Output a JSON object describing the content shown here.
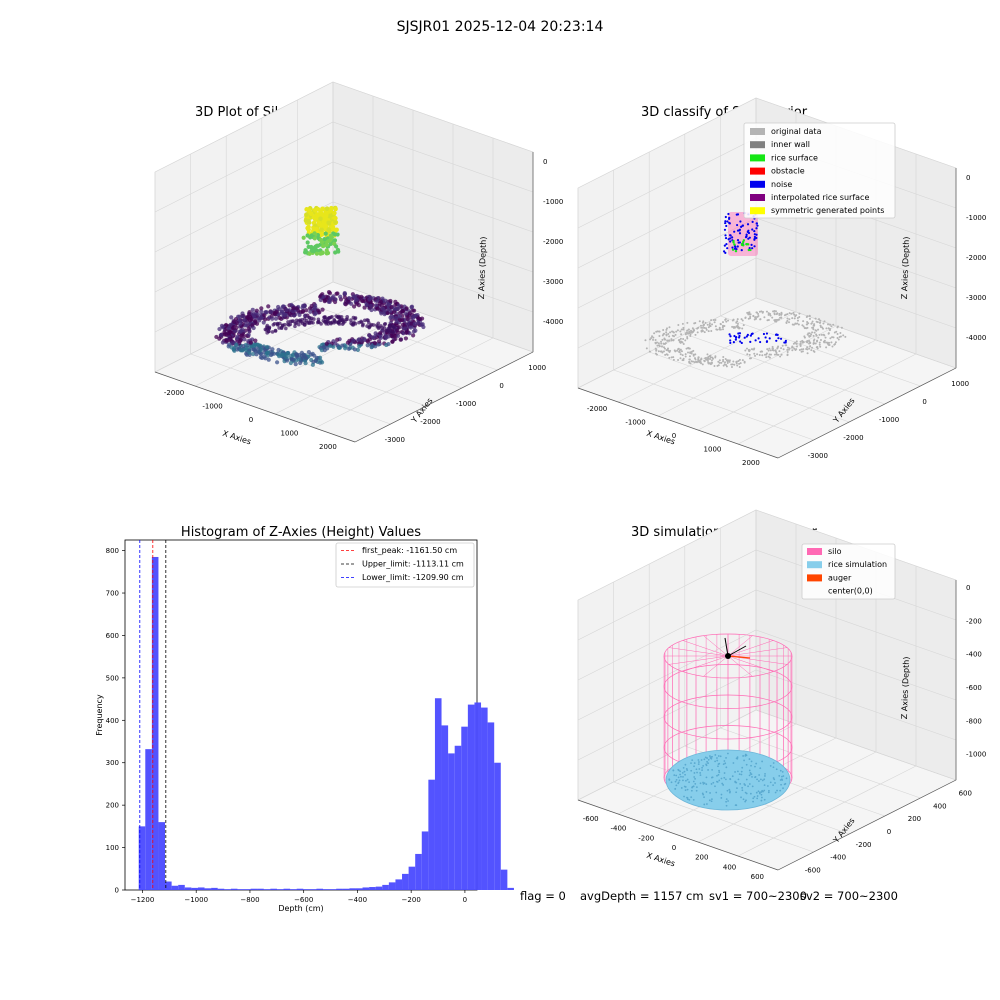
{
  "suptitle": "SJSJR01 2025-12-04 20:23:14",
  "footer": {
    "flag": "flag = 0",
    "avg": "avgDepth = 1157 cm",
    "sv1": "sv1 = 700~2300",
    "sv2": "sv2 = 700~2300"
  },
  "chart_data": [
    {
      "type": "scatter",
      "projection": "3d",
      "title": "3D Plot of Silo Interior(row data)",
      "xlabel": "X Axies",
      "ylabel": "Y Axies",
      "zlabel": "Z Axies (Depth)",
      "xticks": [
        "-2000",
        "-1000",
        "0",
        "1000",
        "2000"
      ],
      "yticks": [
        "-3000",
        "-2000",
        "-1000",
        "0",
        "1000"
      ],
      "zticks": [
        "0",
        "-1000",
        "-2000",
        "-3000",
        "-4000"
      ],
      "colormap": "viridis",
      "grid": true,
      "clusters": [
        {
          "description_color": "#e8e61a",
          "z_range": [
            -1000,
            -300
          ]
        },
        {
          "description_color": "#4fc26a",
          "z_range": [
            -1500,
            -1000
          ]
        },
        {
          "description_color": "#3b1a5e",
          "z_range": [
            -4300,
            -3300
          ]
        }
      ]
    },
    {
      "type": "scatter",
      "projection": "3d",
      "title": "3D classify of Silo Interior",
      "xlabel": "X Axies",
      "ylabel": "Y Axies",
      "zlabel": "Z Axies (Depth)",
      "xticks": [
        "-2000",
        "-1000",
        "0",
        "1000",
        "2000"
      ],
      "yticks": [
        "-3000",
        "-2000",
        "-1000",
        "0",
        "1000"
      ],
      "zticks": [
        "0",
        "-1000",
        "-2000",
        "-3000",
        "-4000"
      ],
      "grid": true,
      "legend_position": "top-right",
      "legend": [
        {
          "label": "original data",
          "color": "#b4b4b4"
        },
        {
          "label": "inner wall",
          "color": "#808080"
        },
        {
          "label": "rice surface",
          "color": "#14e614"
        },
        {
          "label": "obstacle",
          "color": "#ff0000"
        },
        {
          "label": "noise",
          "color": "#0000ee"
        },
        {
          "label": "interpolated rice surface",
          "color": "#800080"
        },
        {
          "label": "symmetric generated points",
          "color": "#ffff00"
        }
      ]
    },
    {
      "type": "bar",
      "subtype": "histogram",
      "title": "Histogram of Z-Axies (Height) Values",
      "xlabel": "Depth (cm)",
      "ylabel": "Frequency",
      "xlim": [
        -1265,
        45
      ],
      "ylim": [
        0,
        825
      ],
      "xticks": [
        -1200,
        -1000,
        -800,
        -600,
        -400,
        -200,
        0
      ],
      "xtick_labels": [
        "−1200",
        "−1000",
        "−800",
        "−600",
        "−400",
        "−200",
        "0"
      ],
      "yticks": [
        0,
        100,
        200,
        300,
        400,
        500,
        600,
        700,
        800
      ],
      "bar_color": "#4a4aff",
      "bin_width": 24.5,
      "bin_start": -1214,
      "values": [
        150,
        332,
        785,
        160,
        20,
        10,
        12,
        6,
        5,
        6,
        4,
        5,
        3,
        2,
        3,
        2,
        2,
        3,
        3,
        2,
        3,
        2,
        3,
        2,
        3,
        2,
        2,
        3,
        2,
        2,
        3,
        3,
        4,
        4,
        6,
        7,
        8,
        12,
        18,
        25,
        38,
        55,
        85,
        138,
        260,
        452,
        388,
        322,
        340,
        385,
        437,
        442,
        430,
        395,
        300,
        48,
        5
      ],
      "vlines": [
        {
          "label": "first_peak: -1161.50 cm",
          "x": -1161.5,
          "color": "#ff0000",
          "style": "dashed"
        },
        {
          "label": "Upper_limit: -1113.11 cm",
          "x": -1113.11,
          "color": "#000000",
          "style": "dashed"
        },
        {
          "label": "Lower_limit: -1209.90 cm",
          "x": -1209.9,
          "color": "#0000ff",
          "style": "dashed"
        }
      ],
      "legend_position": "top-right",
      "grid": false
    },
    {
      "type": "scatter",
      "projection": "3d",
      "title": "3D simulation of Silo Interior",
      "xlabel": "X Axies",
      "ylabel": "Y Axies",
      "zlabel": "Z Axies (Depth)",
      "xticks": [
        "-600",
        "-400",
        "-200",
        "0",
        "200",
        "400",
        "600"
      ],
      "yticks": [
        "-600",
        "-400",
        "-200",
        "0",
        "200",
        "400",
        "600"
      ],
      "zticks": [
        "0",
        "-200",
        "-400",
        "-600",
        "-800",
        "-1000"
      ],
      "grid": true,
      "legend_position": "top-right",
      "legend": [
        {
          "label": "silo",
          "color": "#ff69b4",
          "marker": "patch"
        },
        {
          "label": "rice simulation",
          "color": "#87ceeb",
          "marker": "patch"
        },
        {
          "label": "auger",
          "color": "#ff4500",
          "marker": "patch"
        },
        {
          "label": "center(0,0)",
          "color": "",
          "marker": "none"
        }
      ]
    }
  ]
}
